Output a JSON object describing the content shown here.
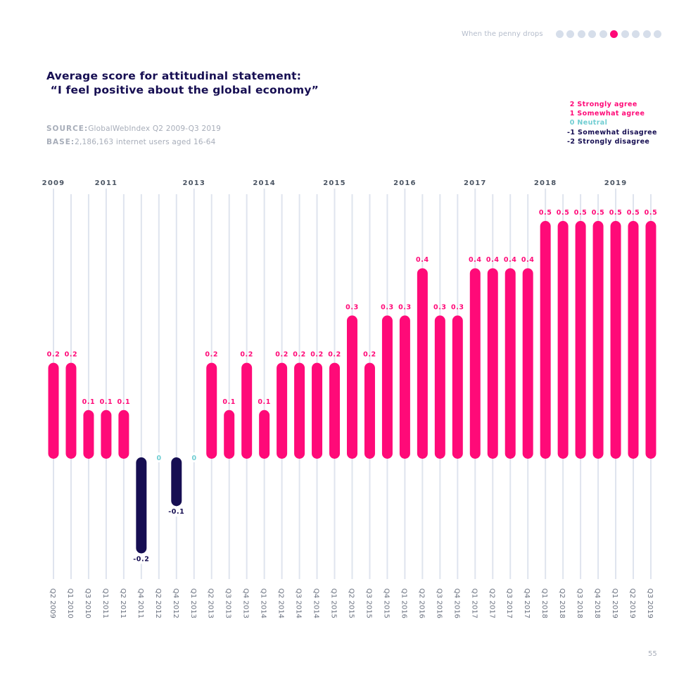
{
  "header": {
    "section_label": "When the penny drops",
    "pagination": {
      "total": 10,
      "active_index": 5
    }
  },
  "title_line1": "Average score for attitudinal statement:",
  "title_line2": " “I feel positive about the global economy”",
  "source": {
    "key": "SOURCE:",
    "value": "GlobalWebIndex Q2 2009-Q3 2019"
  },
  "base": {
    "key": "BASE:",
    "value": "2,186,163 internet users aged 16-64"
  },
  "legend": [
    {
      "label": " 2 Strongly agree",
      "color": "#ff0a78"
    },
    {
      "label": " 1 Somewhat agree",
      "color": "#ff0a78"
    },
    {
      "label": " 0 Neutral",
      "color": "#6fcdd2"
    },
    {
      "label": "-1 Somewhat disagree",
      "color": "#160e52"
    },
    {
      "label": "-2 Strongly disagree",
      "color": "#160e52"
    }
  ],
  "page_number": "55",
  "chart_data": {
    "type": "bar",
    "title": "Average score for attitudinal statement: “I feel positive about the global economy”",
    "xlabel": "",
    "ylabel": "",
    "ylim": [
      -0.2,
      0.5
    ],
    "grid": true,
    "colors": {
      "positive": "#ff0a78",
      "negative": "#160e52",
      "zero": "#6fcdd2",
      "grid": "#dfe4ee",
      "axis_text": "#6b7280"
    },
    "categories": [
      "Q2 2009",
      "Q1 2010",
      "Q3 2010",
      "Q1 2011",
      "Q2 2011",
      "Q4 2011",
      "Q2 2012",
      "Q4 2012",
      "Q1 2013",
      "Q2 2013",
      "Q3 2013",
      "Q4 2013",
      "Q1 2014",
      "Q2 2014",
      "Q3 2014",
      "Q4 2014",
      "Q1 2015",
      "Q2 2015",
      "Q3 2015",
      "Q4 2015",
      "Q1 2016",
      "Q2 2016",
      "Q3 2016",
      "Q4 2016",
      "Q1 2017",
      "Q2 2017",
      "Q3 2017",
      "Q4 2017",
      "Q1 2018",
      "Q2 2018",
      "Q3 2018",
      "Q4 2018",
      "Q1 2019",
      "Q2 2019",
      "Q3 2019"
    ],
    "values": [
      0.2,
      0.2,
      0.1,
      0.1,
      0.1,
      -0.2,
      0,
      -0.1,
      0,
      0.2,
      0.1,
      0.2,
      0.1,
      0.2,
      0.2,
      0.2,
      0.2,
      0.3,
      0.2,
      0.3,
      0.3,
      0.4,
      0.3,
      0.3,
      0.4,
      0.4,
      0.4,
      0.4,
      0.5,
      0.5,
      0.5,
      0.5,
      0.5,
      0.5,
      0.5
    ],
    "value_labels": [
      "0.2",
      "0.2",
      "0.1",
      "0.1",
      "0.1",
      "-0.2",
      "0",
      "-0.1",
      "0",
      "0.2",
      "0.1",
      "0.2",
      "0.1",
      "0.2",
      "0.2",
      "0.2",
      "0.2",
      "0.3",
      "0.2",
      "0.3",
      "0.3",
      "0.4",
      "0.3",
      "0.3",
      "0.4",
      "0.4",
      "0.4",
      "0.4",
      "0.5",
      "0.5",
      "0.5",
      "0.5",
      "0.5",
      "0.5",
      "0.5"
    ],
    "year_labels": [
      {
        "label": "2009",
        "at": "Q2 2009"
      },
      {
        "label": "2011",
        "at": "Q1 2011"
      },
      {
        "label": "2013",
        "at": "Q1 2013"
      },
      {
        "label": "2014",
        "at": "Q1 2014"
      },
      {
        "label": "2015",
        "at": "Q1 2015"
      },
      {
        "label": "2016",
        "at": "Q1 2016"
      },
      {
        "label": "2017",
        "at": "Q1 2017"
      },
      {
        "label": "2018",
        "at": "Q1 2018"
      },
      {
        "label": "2019",
        "at": "Q1 2019"
      }
    ]
  }
}
